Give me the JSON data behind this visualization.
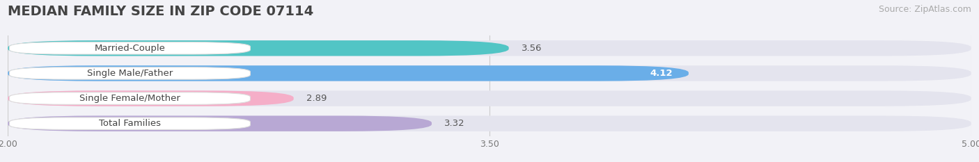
{
  "title": "MEDIAN FAMILY SIZE IN ZIP CODE 07114",
  "source": "Source: ZipAtlas.com",
  "categories": [
    "Married-Couple",
    "Single Male/Father",
    "Single Female/Mother",
    "Total Families"
  ],
  "values": [
    3.56,
    4.12,
    2.89,
    3.32
  ],
  "bar_colors": [
    "#52c5c5",
    "#6aaee8",
    "#f5aec8",
    "#b8a8d4"
  ],
  "value_inside": [
    false,
    true,
    false,
    false
  ],
  "xmin": 2.0,
  "xmax": 5.0,
  "xticks": [
    2.0,
    3.5,
    5.0
  ],
  "background_color": "#f2f2f7",
  "bar_background": "#e4e4ee",
  "title_fontsize": 14,
  "source_fontsize": 9,
  "label_fontsize": 9.5,
  "value_fontsize": 9.5
}
